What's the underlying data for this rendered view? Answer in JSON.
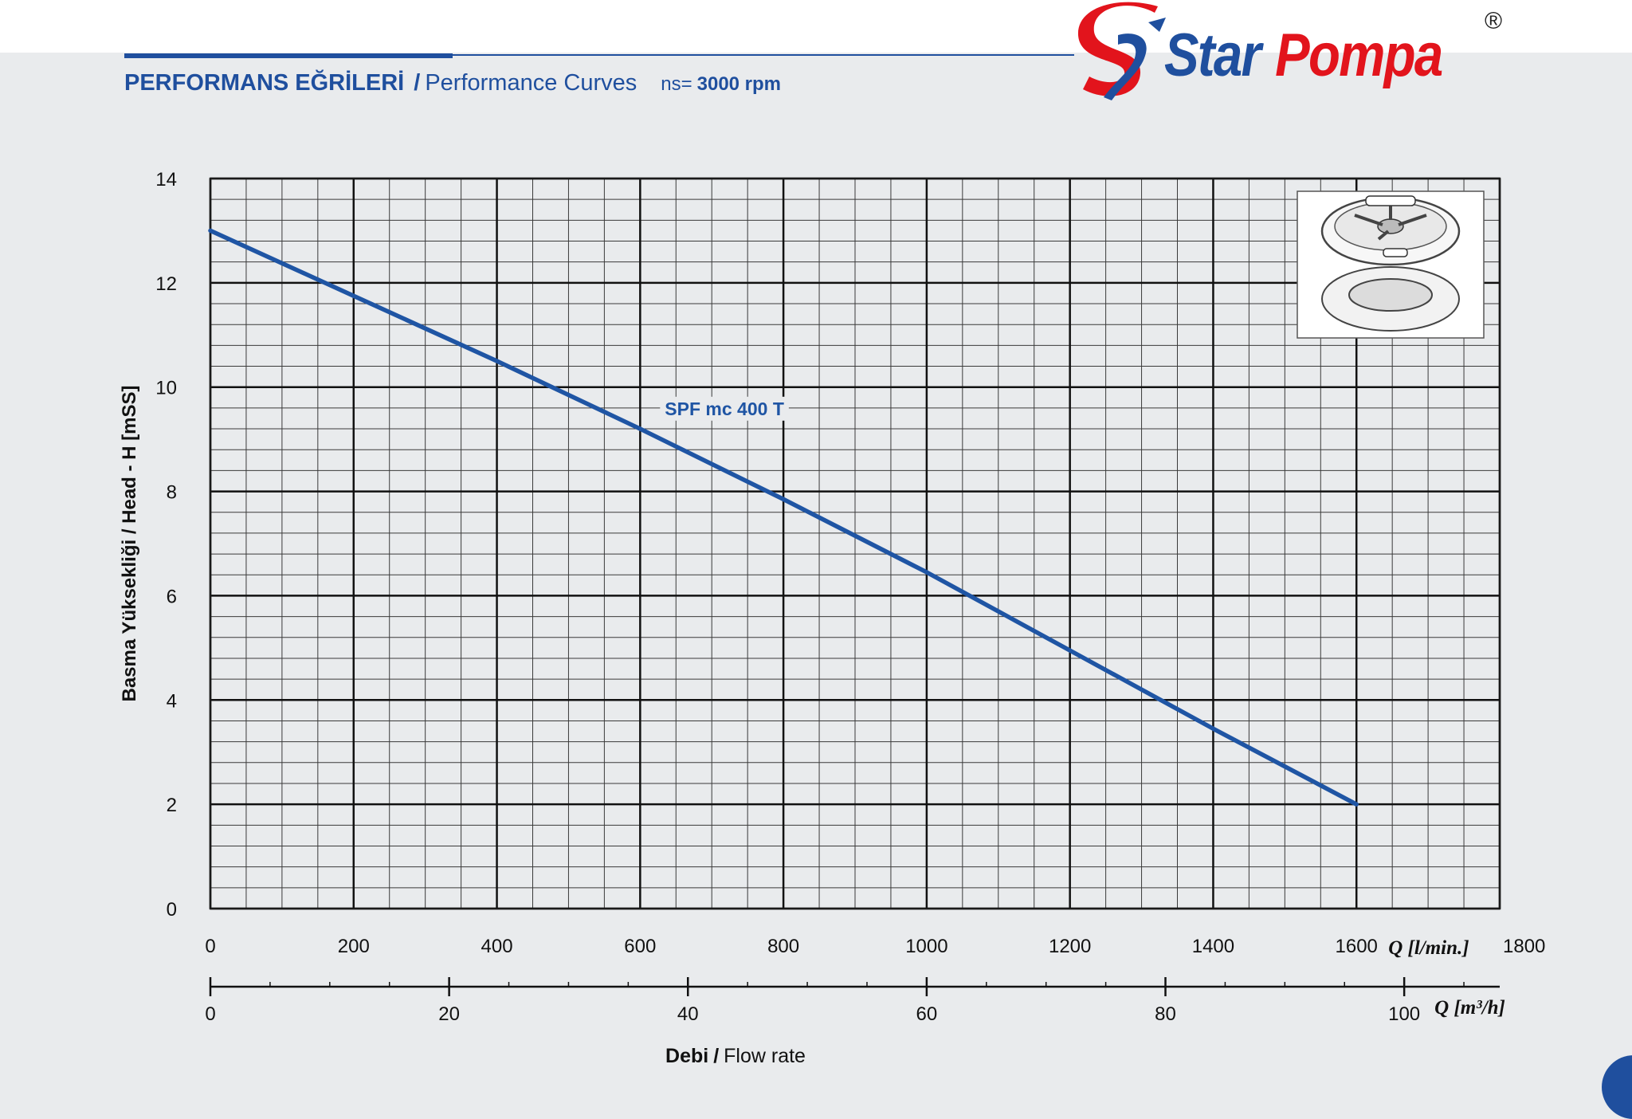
{
  "header": {
    "title_tr": "PERFORMANS EĞRİLERİ",
    "title_sep": "/",
    "title_en": "Performance Curves",
    "speed_label": "ns=",
    "speed_value": "3000 rpm"
  },
  "brand": {
    "word1": "Star",
    "word2": "Pompa",
    "registered": "®",
    "color_blue": "#1f4f9e",
    "color_red": "#e2141c"
  },
  "chart_data": {
    "type": "line",
    "title": "",
    "ylabel": "Basma Yüksekliği / Head - H [mSS]",
    "xlabel_bold": "Debi",
    "xlabel_sep": "/",
    "xlabel_rest": "Flow rate",
    "xlabel_lmin": "Q [l/min.]",
    "xlabel_m3h": "Q [m³/h]",
    "xlim": [
      0,
      1800
    ],
    "ylim": [
      0,
      14
    ],
    "xticks": [
      0,
      200,
      400,
      600,
      800,
      1000,
      1200,
      1400,
      1600,
      1800
    ],
    "yticks": [
      0,
      2,
      4,
      6,
      8,
      10,
      12,
      14
    ],
    "x2lim": [
      0,
      108
    ],
    "x2ticks": [
      0,
      20,
      40,
      60,
      80,
      100
    ],
    "grid": true,
    "series": [
      {
        "name": "SPF mc 400 T",
        "color": "#1f55a4",
        "x": [
          0,
          200,
          400,
          600,
          800,
          1000,
          1200,
          1400,
          1600
        ],
        "y": [
          13.0,
          11.75,
          10.5,
          9.2,
          7.85,
          6.45,
          4.95,
          3.45,
          2.0
        ]
      }
    ],
    "inset_image": "pump-impeller-icon"
  }
}
